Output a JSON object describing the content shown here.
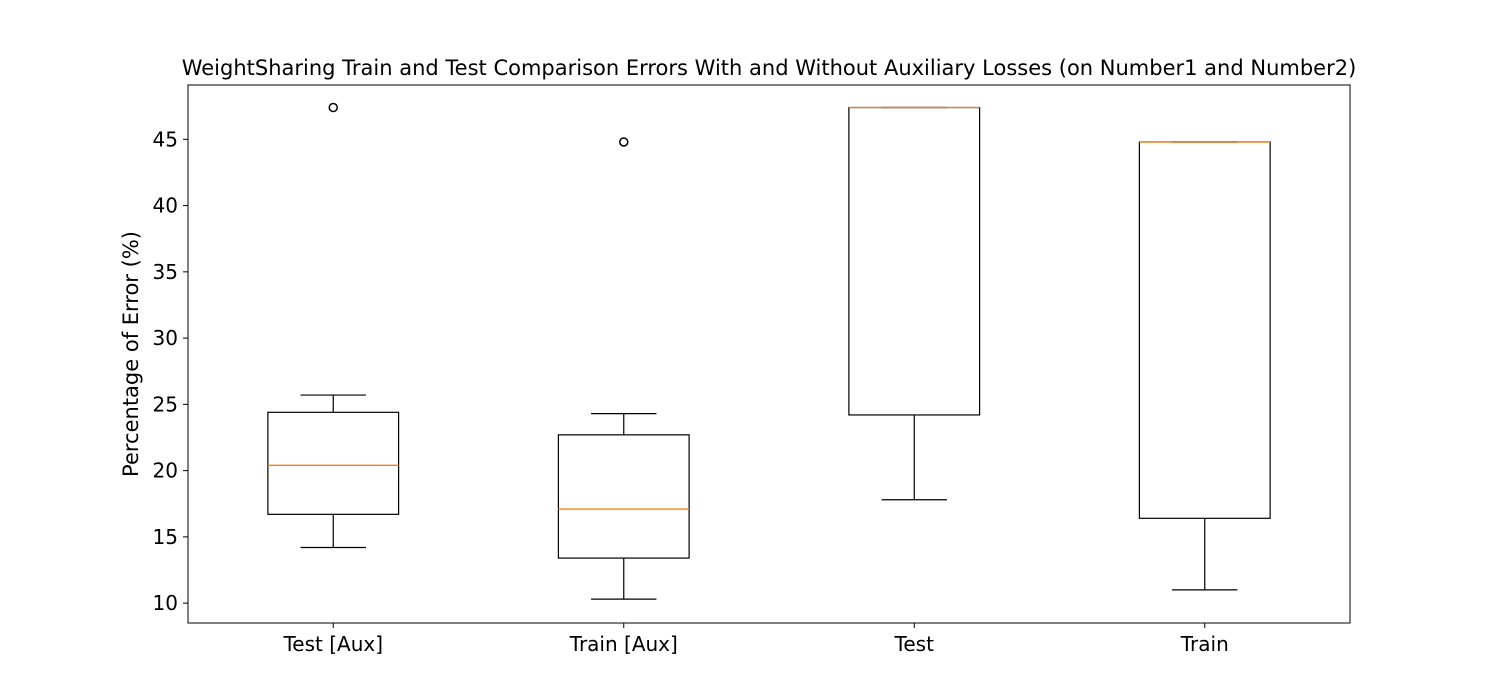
{
  "chart_data": {
    "type": "box",
    "title": "WeightSharing Train and Test Comparison Errors With and Without Auxiliary Losses (on Number1 and Number2)",
    "xlabel": "",
    "ylabel": "Percentage of Error (%)",
    "ylim": [
      8.5,
      49.1
    ],
    "yticks": [
      10,
      15,
      20,
      25,
      30,
      35,
      40,
      45
    ],
    "grid": false,
    "categories": [
      "Test [Aux]",
      "Train [Aux]",
      "Test",
      "Train"
    ],
    "boxes": [
      {
        "whisker_low": 14.2,
        "q1": 16.7,
        "median": 20.4,
        "q3": 24.4,
        "whisker_high": 25.7,
        "outliers": [
          47.4
        ]
      },
      {
        "whisker_low": 10.3,
        "q1": 13.4,
        "median": 17.1,
        "q3": 22.7,
        "whisker_high": 24.3,
        "outliers": [
          44.8
        ]
      },
      {
        "whisker_low": 17.8,
        "q1": 24.2,
        "median": 47.4,
        "q3": 47.4,
        "whisker_high": 47.4,
        "outliers": []
      },
      {
        "whisker_low": 11.0,
        "q1": 16.4,
        "median": 44.8,
        "q3": 44.8,
        "whisker_high": 44.8,
        "outliers": []
      }
    ],
    "colors": {
      "box": "#000000",
      "median": "#ff7f0e",
      "outlier": "#000000"
    }
  }
}
